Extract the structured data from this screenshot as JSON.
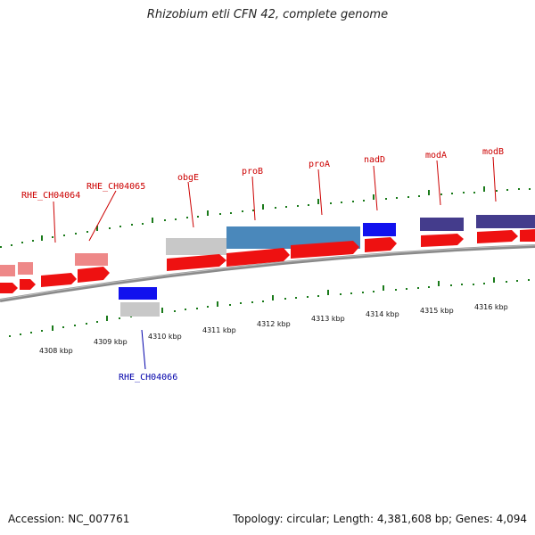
{
  "title": "Rhizobium etli CFN 42, complete genome",
  "footer": {
    "accession": "Accession: NC_007761",
    "summary": "Topology: circular; Length: 4,381,608 bp; Genes: 4,094"
  },
  "colors": {
    "backbone": "#8a8a8a",
    "ticks": "#1a7a1a",
    "cds_forward": "#ee1111",
    "label_forward": "#cc0000",
    "label_reverse": "#0000aa",
    "gene_pink": "#ee8888",
    "gene_grey": "#c8c8c8",
    "gene_steelblue": "#4a88bb",
    "gene_blue": "#1111ee",
    "gene_navy": "#443c8c"
  },
  "scale": {
    "labels": [
      "4308 kbp",
      "4309 kbp",
      "4310 kbp",
      "4311 kbp",
      "4312 kbp",
      "4313 kbp",
      "4314 kbp",
      "4315 kbp",
      "4316 kbp"
    ]
  },
  "genes": {
    "forward": [
      "RHE_CH04064",
      "RHE_CH04065",
      "obgE",
      "proB",
      "proA",
      "nadD",
      "modA",
      "modB"
    ],
    "reverse": [
      "RHE_CH04066"
    ]
  }
}
